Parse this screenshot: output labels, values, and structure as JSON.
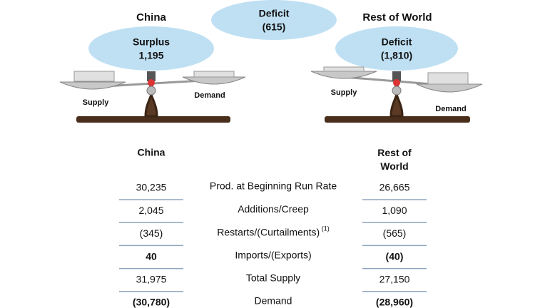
{
  "header": {
    "left_title": "China",
    "right_title": "Rest of World"
  },
  "bubbles": {
    "left": {
      "label": "Surplus",
      "value": "1,195"
    },
    "center": {
      "label": "Deficit",
      "value": "(615)"
    },
    "right": {
      "label": "Deficit",
      "value": "(1,810)"
    }
  },
  "scales": {
    "left": {
      "pan_left": "Supply",
      "pan_right": "Demand"
    },
    "right": {
      "pan_left": "Supply",
      "pan_right": "Demand"
    }
  },
  "table": {
    "columns": [
      "China",
      "Rest of World"
    ],
    "rows": [
      {
        "label": "Prod. at Beginning Run Rate",
        "china": "30,235",
        "row": "26,665"
      },
      {
        "label": "Additions/Creep",
        "china": "2,045",
        "row": "1,090"
      },
      {
        "label": "Restarts/(Curtailments)",
        "note": "(1)",
        "china": "(345)",
        "row": "(565)"
      },
      {
        "label": "Imports/(Exports)",
        "china": "40",
        "row": "(40)",
        "bold": true
      },
      {
        "label": "Total Supply",
        "china": "31,975",
        "row": "27,150"
      },
      {
        "label": "Demand",
        "china": "(30,780)",
        "row": "(28,960)",
        "bold": true
      }
    ]
  }
}
